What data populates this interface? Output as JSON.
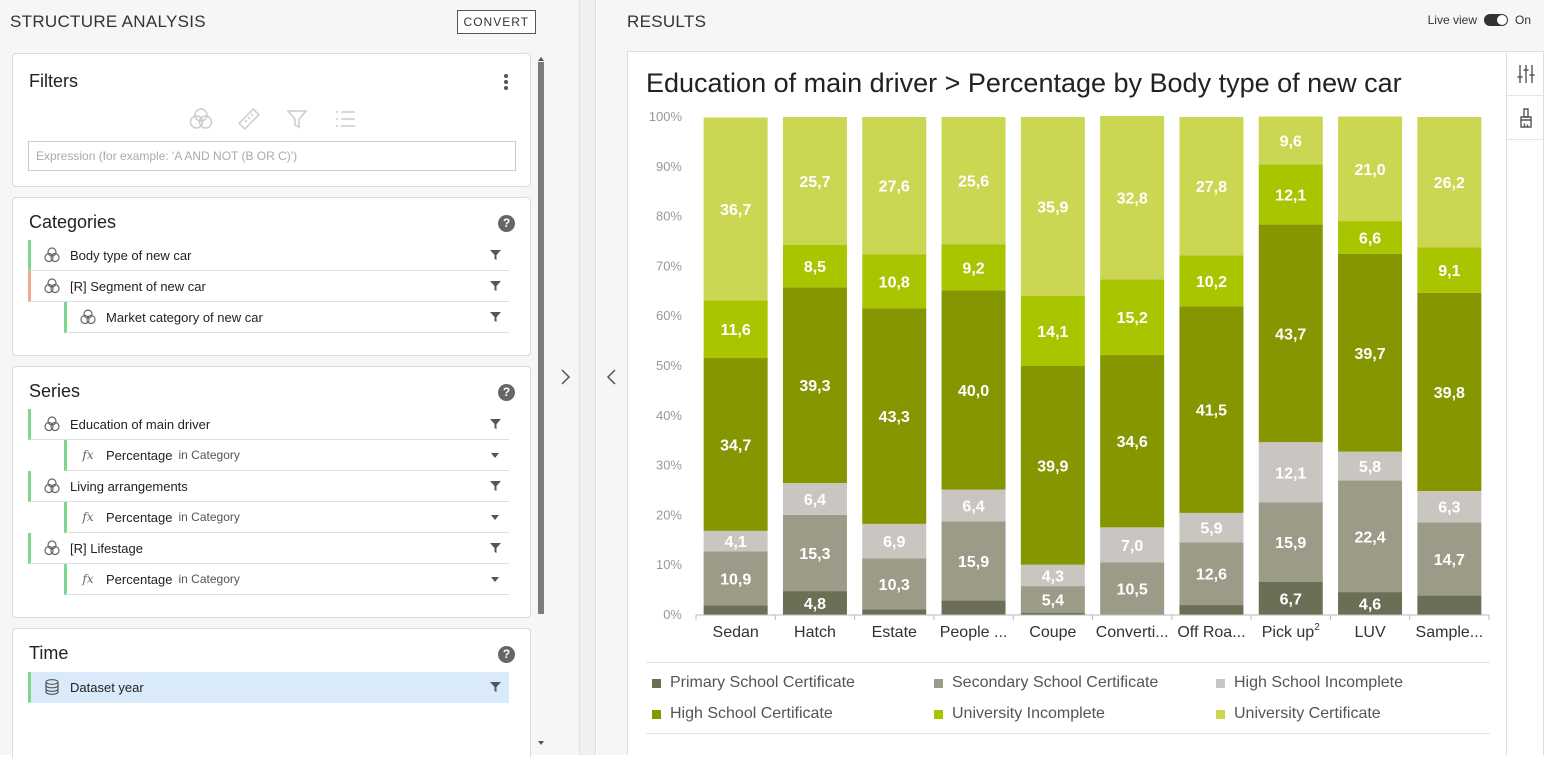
{
  "left": {
    "title": "STRUCTURE ANALYSIS",
    "convert_label": "CONVERT",
    "filters": {
      "title": "Filters",
      "expression_placeholder": "Expression (for example: 'A AND NOT (B OR C)')",
      "icons": [
        "venn-icon",
        "ruler-icon",
        "funnel-icon",
        "list-icon"
      ]
    },
    "categories": {
      "title": "Categories",
      "help": "?",
      "items": [
        {
          "label": "Body type of new car"
        },
        {
          "label": "[R] Segment of new car"
        },
        {
          "label": "Market category of new car"
        }
      ]
    },
    "series": {
      "title": "Series",
      "help": "?",
      "items": [
        {
          "label": "Education of main driver",
          "measure": "Percentage",
          "measure_sub": "in Category"
        },
        {
          "label": "Living arrangements",
          "measure": "Percentage",
          "measure_sub": "in Category"
        },
        {
          "label": "[R] Lifestage",
          "measure": "Percentage",
          "measure_sub": "in Category"
        }
      ],
      "fx": "fx"
    },
    "time": {
      "title": "Time",
      "help": "?",
      "items": [
        {
          "label": "Dataset year"
        }
      ]
    }
  },
  "right": {
    "title": "RESULTS",
    "live_view_label": "Live view",
    "live_view_state": "On"
  },
  "chart_data": {
    "type": "bar",
    "stacked": true,
    "percent": true,
    "title": "Education of main driver > Percentage by Body type of new car",
    "categories": [
      "Sedan",
      "Hatch",
      "Estate",
      "People ...",
      "Coupe",
      "Converti...",
      "Off Roa...",
      "Pick up",
      "LUV",
      "Sample..."
    ],
    "category_superscripts": [
      "",
      "",
      "",
      "",
      "",
      "",
      "",
      "2",
      "",
      ""
    ],
    "yticks": [
      "0%",
      "10%",
      "20%",
      "30%",
      "40%",
      "50%",
      "60%",
      "70%",
      "80%",
      "90%",
      "100%"
    ],
    "ylim": [
      0,
      100
    ],
    "legend_position": "bottom",
    "series": [
      {
        "name": "Primary School Certificate",
        "color": "#6b6f55",
        "values": [
          1.9,
          4.8,
          1.1,
          2.9,
          0.4,
          0.1,
          2.0,
          6.7,
          4.6,
          3.9
        ],
        "labels": [
          "",
          "4,8",
          "",
          "",
          "",
          "",
          "",
          "6,7",
          "4,6",
          ""
        ]
      },
      {
        "name": "Secondary School Certificate",
        "color": "#9c9b87",
        "values": [
          10.9,
          15.3,
          10.3,
          15.9,
          5.4,
          10.5,
          12.6,
          15.9,
          22.4,
          14.7
        ],
        "labels": [
          "10,9",
          "15,3",
          "10,3",
          "15,9",
          "5,4",
          "10,5",
          "12,6",
          "15,9",
          "22,4",
          "14,7"
        ]
      },
      {
        "name": "High School Incomplete",
        "color": "#c9c6c1",
        "values": [
          4.1,
          6.4,
          6.9,
          6.4,
          4.3,
          7.0,
          5.9,
          12.1,
          5.8,
          6.3
        ],
        "labels": [
          "4,1",
          "6,4",
          "6,9",
          "6,4",
          "4,3",
          "7,0",
          "5,9",
          "12,1",
          "5,8",
          "6,3"
        ]
      },
      {
        "name": "High School Certificate",
        "color": "#869600",
        "values": [
          34.7,
          39.3,
          43.3,
          40.0,
          39.9,
          34.6,
          41.5,
          43.7,
          39.7,
          39.8
        ],
        "labels": [
          "34,7",
          "39,3",
          "43,3",
          "40,0",
          "39,9",
          "34,6",
          "41,5",
          "43,7",
          "39,7",
          "39,8"
        ]
      },
      {
        "name": "University Incomplete",
        "color": "#a8c500",
        "values": [
          11.6,
          8.5,
          10.8,
          9.2,
          14.1,
          15.2,
          10.2,
          12.1,
          6.6,
          9.1
        ],
        "labels": [
          "11,6",
          "8,5",
          "10,8",
          "9,2",
          "14,1",
          "15,2",
          "10,2",
          "12,1",
          "6,6",
          "9,1"
        ]
      },
      {
        "name": "University Certificate",
        "color": "#cbd752",
        "values": [
          36.7,
          25.7,
          27.6,
          25.6,
          35.9,
          32.8,
          27.8,
          9.6,
          21.0,
          26.2
        ],
        "labels": [
          "36,7",
          "25,7",
          "27,6",
          "25,6",
          "35,9",
          "32,8",
          "27,8",
          "9,6",
          "21,0",
          "26,2"
        ]
      }
    ]
  }
}
